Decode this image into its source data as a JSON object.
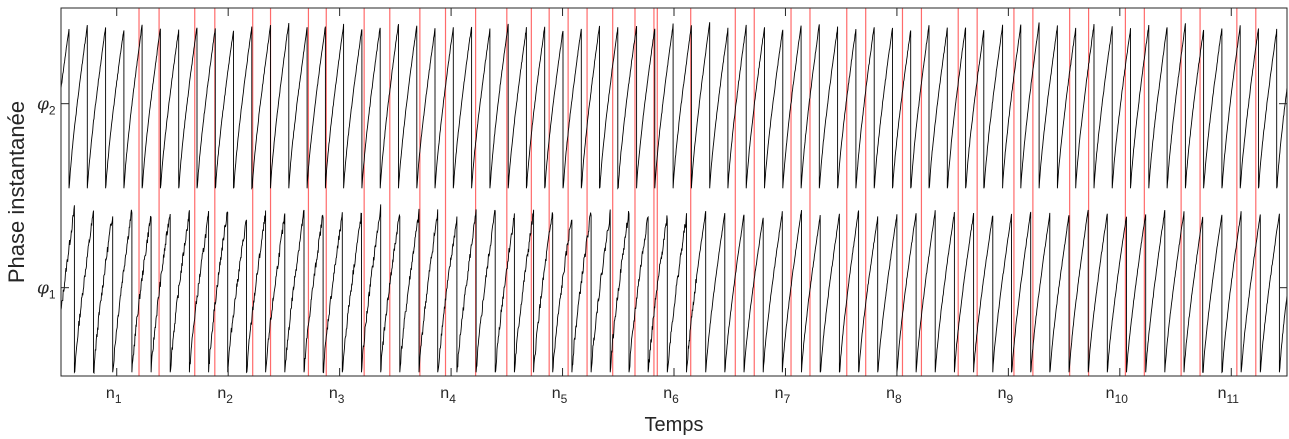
{
  "chart_data": {
    "type": "line",
    "title": "",
    "xlabel": "Temps",
    "ylabel": "Phase instantanée",
    "grid": false,
    "x_ticks": [
      "n1",
      "n2",
      "n3",
      "n4",
      "n5",
      "n6",
      "n7",
      "n8",
      "n9",
      "n10",
      "n11"
    ],
    "x_tick_labels": [
      {
        "base": "n",
        "sub": "1"
      },
      {
        "base": "n",
        "sub": "2"
      },
      {
        "base": "n",
        "sub": "3"
      },
      {
        "base": "n",
        "sub": "4"
      },
      {
        "base": "n",
        "sub": "5"
      },
      {
        "base": "n",
        "sub": "6"
      },
      {
        "base": "n",
        "sub": "7"
      },
      {
        "base": "n",
        "sub": "8"
      },
      {
        "base": "n",
        "sub": "9"
      },
      {
        "base": "n",
        "sub": "10"
      },
      {
        "base": "n",
        "sub": "11"
      }
    ],
    "x_tick_positions": [
      1,
      2,
      3,
      4,
      5,
      6,
      7,
      8,
      9,
      10,
      11
    ],
    "xlim": [
      0.5,
      11.5
    ],
    "y_tick_labels": [
      {
        "base": "φ",
        "sub": "1"
      },
      {
        "base": "φ",
        "sub": "2"
      }
    ],
    "y_tick_positions": [
      1,
      2
    ],
    "ylim": [
      0.52,
      2.52
    ],
    "phase_band_height": 0.92,
    "series": [
      {
        "id": "phi1",
        "offset": 1,
        "color": "#000000",
        "cycles": [
          0.98,
          0.96,
          0.95,
          0.97,
          0.94,
          0.96,
          0.95,
          0.93,
          0.97,
          0.92,
          0.95,
          0.94,
          0.96,
          0.95,
          0.93,
          0.94,
          0.97,
          0.95,
          0.94,
          0.96,
          0.92,
          0.95,
          0.97,
          0.94,
          0.95,
          0.96,
          0.93,
          0.95,
          0.94,
          0.97,
          0.95,
          0.94,
          0.93,
          0.96,
          0.95,
          0.94,
          0.92,
          0.95,
          0.96,
          0.94,
          0.95,
          0.97,
          0.93,
          0.94,
          0.95,
          0.96,
          0.95,
          0.94,
          0.93,
          0.95,
          0.96,
          0.95,
          0.94,
          0.97,
          0.95,
          0.93,
          0.94,
          0.96,
          0.95,
          0.94,
          0.95,
          0.96,
          0.94,
          0.95
        ],
        "period": 0.1716,
        "start_phase": 0.28
      },
      {
        "id": "phi2",
        "offset": 2,
        "color": "#000000",
        "cycles": [
          0.95,
          0.97,
          0.96,
          0.95,
          0.98,
          0.96,
          0.95,
          0.97,
          0.96,
          0.95,
          0.97,
          0.96,
          0.98,
          0.95,
          0.96,
          0.97,
          0.95,
          0.96,
          0.98,
          0.97,
          0.95,
          0.96,
          0.97,
          0.95,
          0.98,
          0.96,
          0.97,
          0.95,
          0.96,
          0.98,
          0.97,
          0.96,
          0.95,
          0.97,
          0.96,
          0.98,
          0.95,
          0.97,
          0.96,
          0.95,
          0.97,
          0.98,
          0.96,
          0.95,
          0.97,
          0.96,
          0.95,
          0.98,
          0.96,
          0.97,
          0.95,
          0.96,
          0.97,
          0.98,
          0.96,
          0.95,
          0.97,
          0.96,
          0.95,
          0.97,
          0.96,
          0.98,
          0.95,
          0.96,
          0.97,
          0.96
        ],
        "period": 0.1642,
        "start_phase": 0.55
      }
    ],
    "event_lines": {
      "color": "#ff6b6b",
      "x": [
        1.2,
        1.38,
        1.7,
        1.88,
        2.22,
        2.38,
        2.72,
        2.88,
        3.22,
        3.45,
        3.72,
        3.95,
        4.22,
        4.5,
        4.72,
        4.88,
        5.05,
        5.22,
        5.45,
        5.65,
        5.82,
        5.85,
        6.15,
        6.55,
        6.72,
        7.05,
        7.22,
        7.55,
        7.72,
        8.05,
        8.22,
        8.55,
        8.72,
        9.05,
        9.22,
        9.55,
        9.72,
        10.05,
        10.22,
        10.55,
        10.72,
        11.05,
        11.22
      ]
    }
  }
}
